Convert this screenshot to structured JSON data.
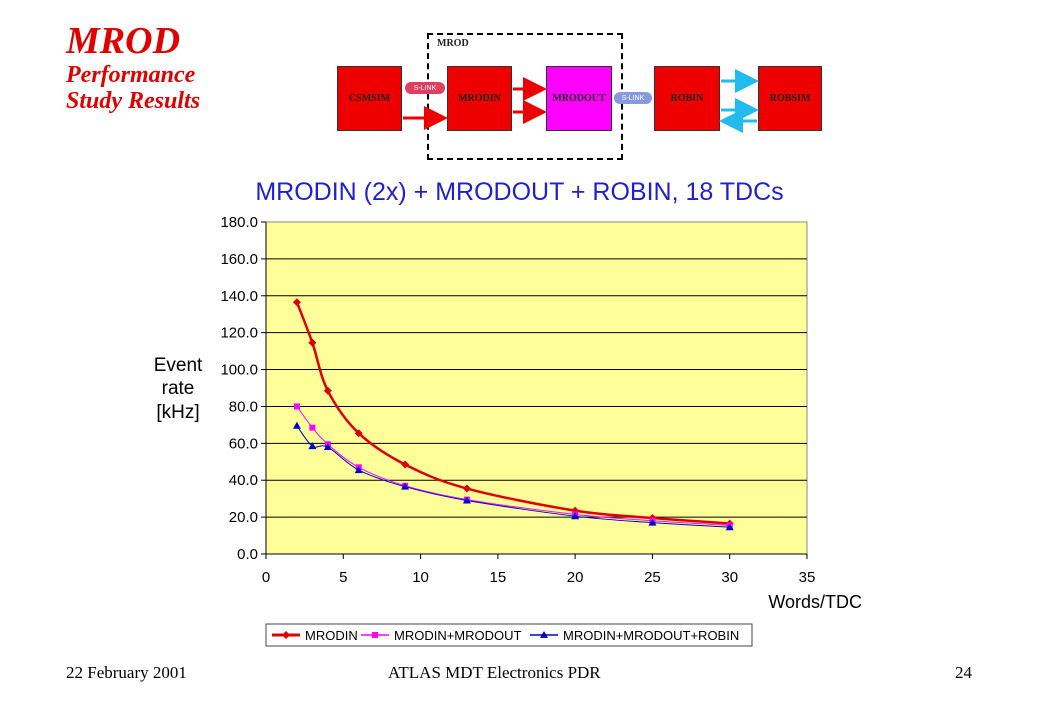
{
  "slide": {
    "title": "MROD",
    "subtitle_line1": "Performance",
    "subtitle_line2": "Study Results"
  },
  "diagram": {
    "group_label": "MROD",
    "blocks": [
      "CSMSIM",
      "MRODIN",
      "MRODOUT",
      "ROBIN",
      "ROBSIM"
    ],
    "link_label_1": "S-LINK",
    "link_label_2": "S-LINK"
  },
  "footer": {
    "date": "22 February 2001",
    "event": "ATLAS MDT Electronics PDR",
    "page": "24"
  },
  "colors": {
    "title": "#e00000",
    "plot_bg": "#ffff99",
    "mrodin": "#dd0000",
    "mrodin_mrodout": "#ff00ff",
    "mrodin_mrodout_robin": "#0000cc"
  },
  "chart_data": {
    "type": "line",
    "title": "MRODIN (2x) + MRODOUT + ROBIN, 18 TDCs",
    "xlabel": "Words/TDC",
    "ylabel_lines": [
      "Event",
      "rate",
      "[kHz]"
    ],
    "xlim": [
      0,
      35
    ],
    "ylim": [
      0,
      180
    ],
    "x_ticks": [
      "0",
      "5",
      "10",
      "15",
      "20",
      "25",
      "30",
      "35"
    ],
    "y_ticks": [
      "0.0",
      "20.0",
      "40.0",
      "60.0",
      "80.0",
      "100.0",
      "120.0",
      "140.0",
      "160.0",
      "180.0"
    ],
    "grid": "horizontal",
    "legend_position": "bottom",
    "series": [
      {
        "name": "MRODIN",
        "marker": "diamond",
        "x": [
          2,
          3,
          4,
          6,
          9,
          13,
          20,
          25,
          30
        ],
        "y": [
          136.5,
          114.5,
          88.5,
          65.5,
          48.5,
          35.5,
          23.5,
          19.5,
          16.5
        ]
      },
      {
        "name": "MRODIN+MRODOUT",
        "marker": "square",
        "x": [
          2,
          3,
          4,
          6,
          9,
          13,
          20,
          25,
          30
        ],
        "y": [
          80.0,
          68.5,
          59.5,
          47.0,
          37.0,
          29.5,
          21.5,
          18.0,
          15.5
        ]
      },
      {
        "name": "MRODIN+MRODOUT+ROBIN",
        "marker": "triangle",
        "x": [
          2,
          3,
          4,
          6,
          9,
          13,
          20,
          25,
          30
        ],
        "y": [
          69.5,
          58.5,
          58.0,
          45.5,
          36.5,
          29.0,
          20.5,
          17.0,
          14.5
        ]
      }
    ]
  }
}
